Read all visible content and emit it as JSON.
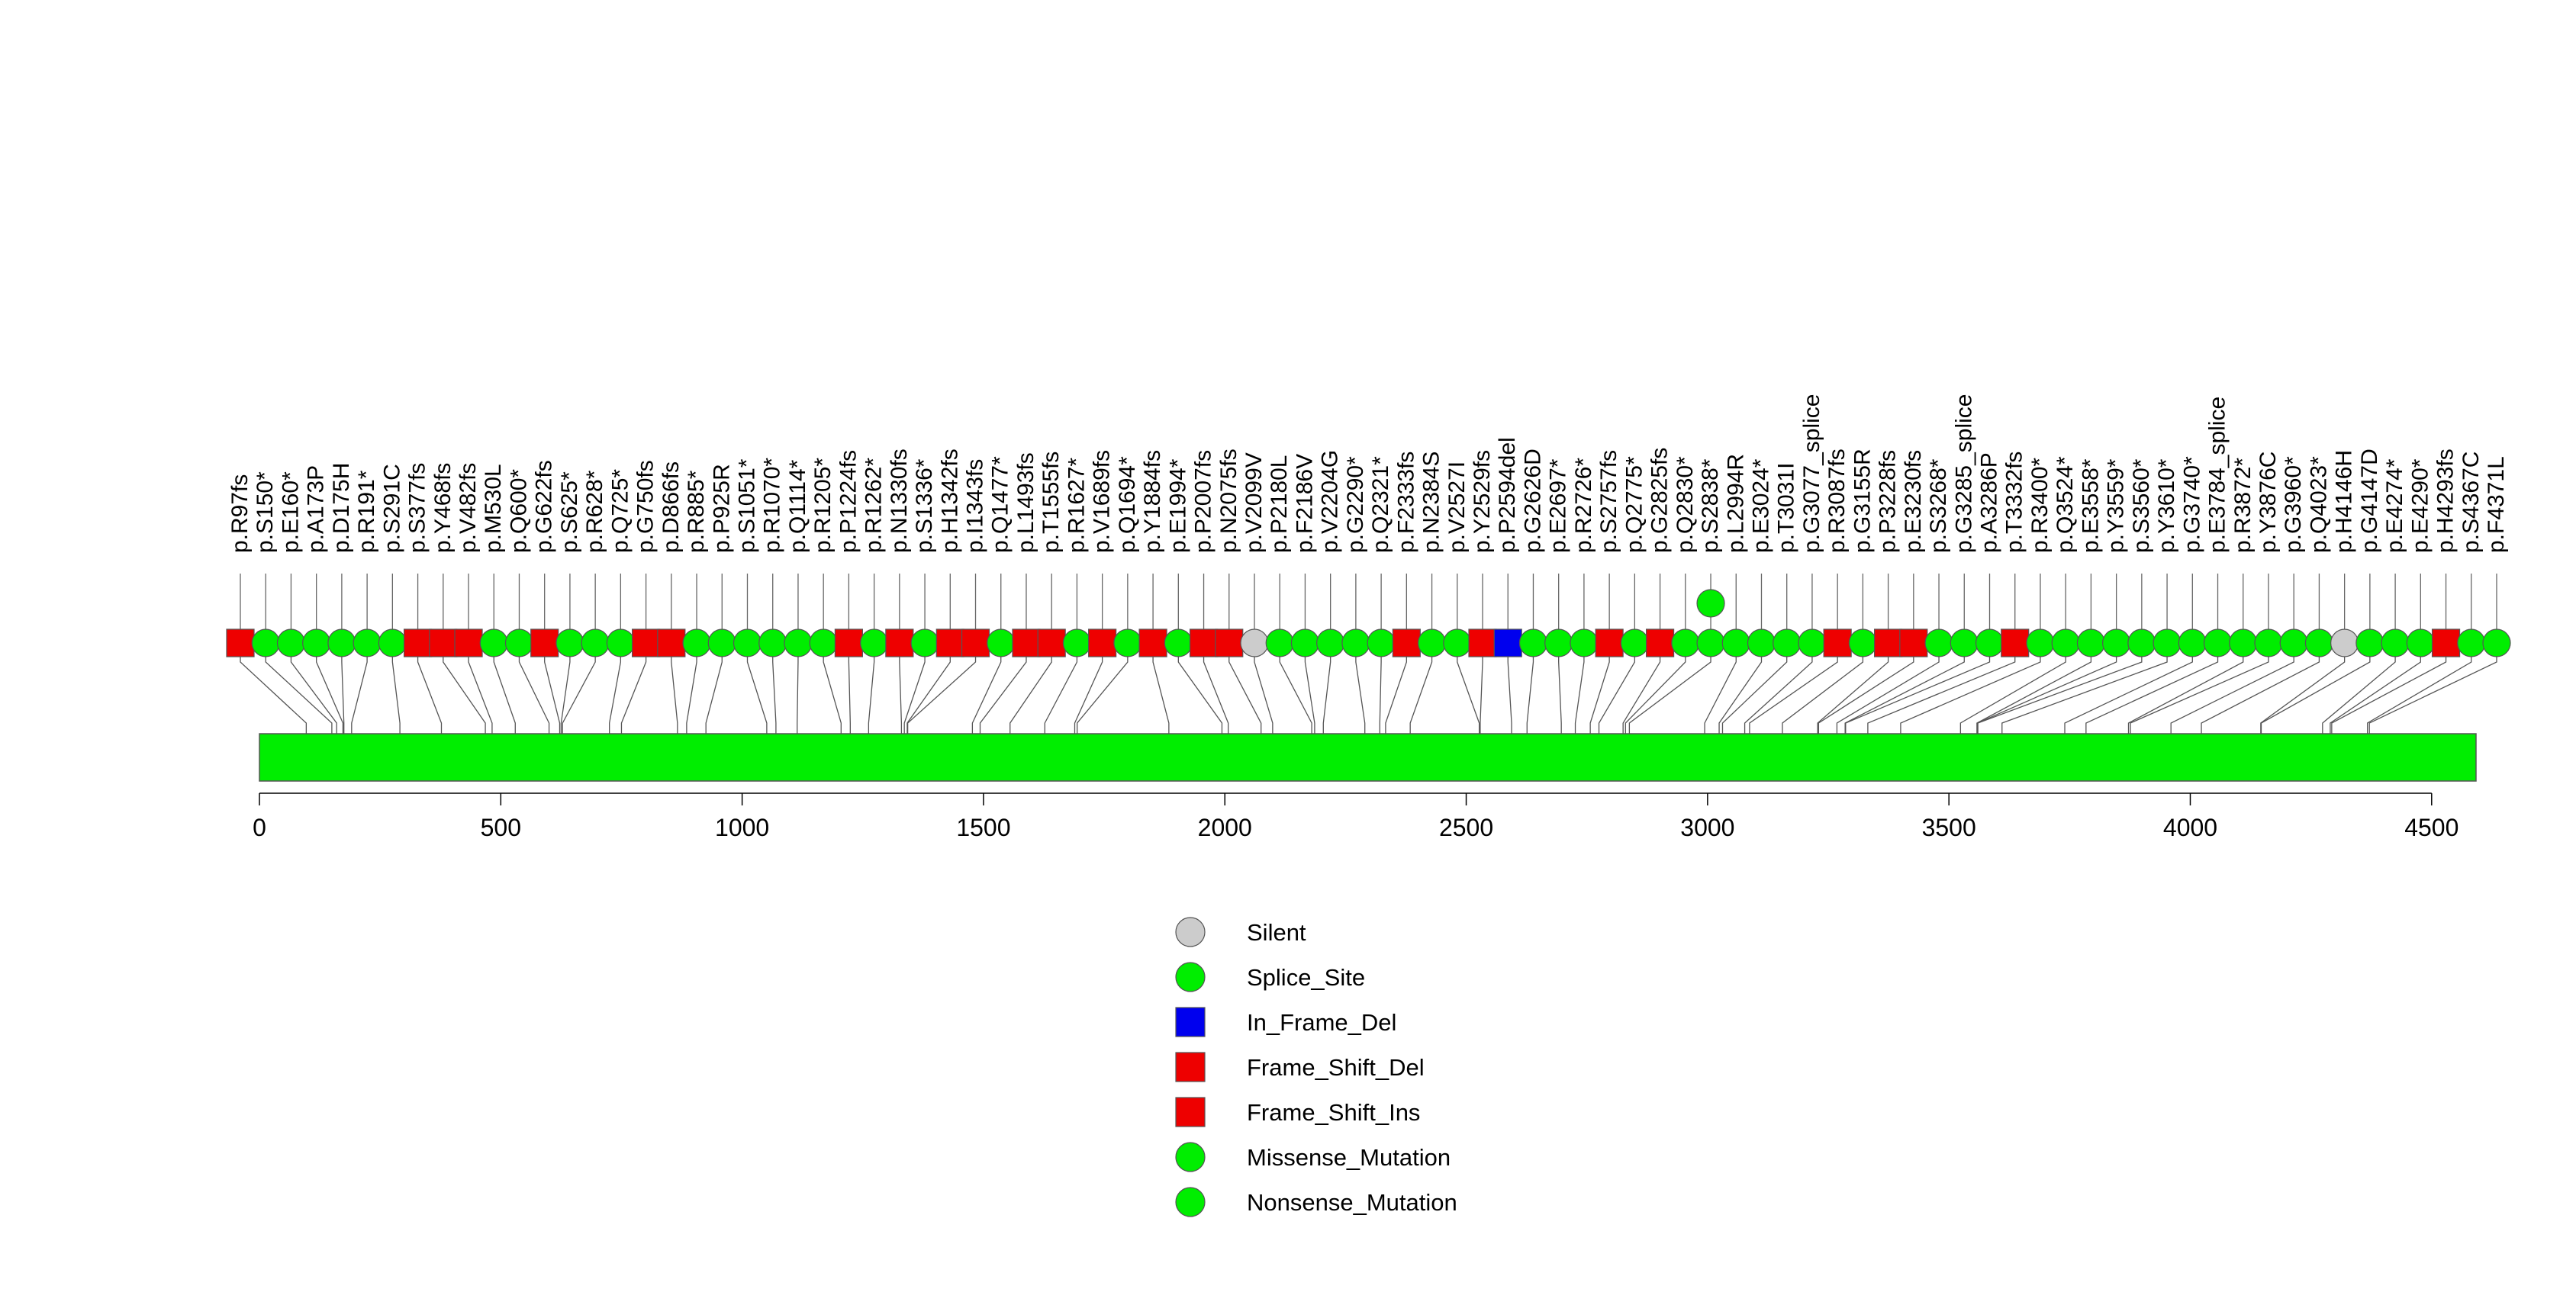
{
  "chart_data": {
    "type": "lollipop",
    "title": "",
    "protein_length": 4592,
    "xlim": [
      0,
      4592
    ],
    "x_ticks": [
      0,
      500,
      1000,
      1500,
      2000,
      2500,
      3000,
      3500,
      4000,
      4500
    ],
    "x_tick_labels": [
      "0",
      "500",
      "1000",
      "1500",
      "2000",
      "2500",
      "3000",
      "3500",
      "4000",
      "4500"
    ],
    "domains": [
      {
        "name": "",
        "start": 0,
        "end": 4592,
        "color": "#00ee00"
      }
    ],
    "mutation_colors": {
      "Silent": "#cccccc",
      "Splice_Site": "#00ee00",
      "In_Frame_Del": "#0000ee",
      "Frame_Shift_Del": "#ee0000",
      "Frame_Shift_Ins": "#ee0000",
      "Missense_Mutation": "#00ee00",
      "Nonsense_Mutation": "#00ee00"
    },
    "legend": [
      {
        "label": "Silent",
        "shape": "circle",
        "color": "#cccccc"
      },
      {
        "label": "Splice_Site",
        "shape": "circle",
        "color": "#00ee00"
      },
      {
        "label": "In_Frame_Del",
        "shape": "square",
        "color": "#0000ee"
      },
      {
        "label": "Frame_Shift_Del",
        "shape": "square",
        "color": "#ee0000"
      },
      {
        "label": "Frame_Shift_Ins",
        "shape": "square",
        "color": "#ee0000"
      },
      {
        "label": "Missense_Mutation",
        "shape": "circle",
        "color": "#00ee00"
      },
      {
        "label": "Nonsense_Mutation",
        "shape": "circle",
        "color": "#00ee00"
      }
    ],
    "mutations": [
      {
        "label": "p.R97fs",
        "pos": 97,
        "type": "Frame_Shift_Del",
        "count": 1
      },
      {
        "label": "p.S150*",
        "pos": 150,
        "type": "Nonsense_Mutation",
        "count": 1
      },
      {
        "label": "p.E160*",
        "pos": 160,
        "type": "Nonsense_Mutation",
        "count": 1
      },
      {
        "label": "p.A173P",
        "pos": 173,
        "type": "Missense_Mutation",
        "count": 1
      },
      {
        "label": "p.D175H",
        "pos": 175,
        "type": "Missense_Mutation",
        "count": 1
      },
      {
        "label": "p.R191*",
        "pos": 191,
        "type": "Nonsense_Mutation",
        "count": 1
      },
      {
        "label": "p.S291C",
        "pos": 291,
        "type": "Missense_Mutation",
        "count": 1
      },
      {
        "label": "p.S377fs",
        "pos": 377,
        "type": "Frame_Shift_Del",
        "count": 1
      },
      {
        "label": "p.Y468fs",
        "pos": 468,
        "type": "Frame_Shift_Del",
        "count": 1
      },
      {
        "label": "p.V482fs",
        "pos": 482,
        "type": "Frame_Shift_Ins",
        "count": 1
      },
      {
        "label": "p.M530L",
        "pos": 530,
        "type": "Missense_Mutation",
        "count": 1
      },
      {
        "label": "p.Q600*",
        "pos": 600,
        "type": "Nonsense_Mutation",
        "count": 1
      },
      {
        "label": "p.G622fs",
        "pos": 622,
        "type": "Frame_Shift_Del",
        "count": 1
      },
      {
        "label": "p.S625*",
        "pos": 625,
        "type": "Nonsense_Mutation",
        "count": 1
      },
      {
        "label": "p.R628*",
        "pos": 628,
        "type": "Nonsense_Mutation",
        "count": 1
      },
      {
        "label": "p.Q725*",
        "pos": 725,
        "type": "Nonsense_Mutation",
        "count": 1
      },
      {
        "label": "p.G750fs",
        "pos": 750,
        "type": "Frame_Shift_Del",
        "count": 1
      },
      {
        "label": "p.D866fs",
        "pos": 866,
        "type": "Frame_Shift_Del",
        "count": 1
      },
      {
        "label": "p.R885*",
        "pos": 885,
        "type": "Nonsense_Mutation",
        "count": 1
      },
      {
        "label": "p.P925R",
        "pos": 925,
        "type": "Missense_Mutation",
        "count": 1
      },
      {
        "label": "p.S1051*",
        "pos": 1051,
        "type": "Nonsense_Mutation",
        "count": 1
      },
      {
        "label": "p.R1070*",
        "pos": 1070,
        "type": "Nonsense_Mutation",
        "count": 1
      },
      {
        "label": "p.Q1114*",
        "pos": 1114,
        "type": "Nonsense_Mutation",
        "count": 1
      },
      {
        "label": "p.R1205*",
        "pos": 1205,
        "type": "Nonsense_Mutation",
        "count": 1
      },
      {
        "label": "p.P1224fs",
        "pos": 1224,
        "type": "Frame_Shift_Del",
        "count": 1
      },
      {
        "label": "p.R1262*",
        "pos": 1262,
        "type": "Nonsense_Mutation",
        "count": 1
      },
      {
        "label": "p.N1330fs",
        "pos": 1330,
        "type": "Frame_Shift_Del",
        "count": 1
      },
      {
        "label": "p.S1336*",
        "pos": 1336,
        "type": "Nonsense_Mutation",
        "count": 1
      },
      {
        "label": "p.H1342fs",
        "pos": 1342,
        "type": "Frame_Shift_Del",
        "count": 1
      },
      {
        "label": "p.I1343fs",
        "pos": 1343,
        "type": "Frame_Shift_Del",
        "count": 1
      },
      {
        "label": "p.Q1477*",
        "pos": 1477,
        "type": "Nonsense_Mutation",
        "count": 1
      },
      {
        "label": "p.L1493fs",
        "pos": 1493,
        "type": "Frame_Shift_Del",
        "count": 1
      },
      {
        "label": "p.T1555fs",
        "pos": 1555,
        "type": "Frame_Shift_Del",
        "count": 1
      },
      {
        "label": "p.R1627*",
        "pos": 1627,
        "type": "Nonsense_Mutation",
        "count": 1
      },
      {
        "label": "p.V1689fs",
        "pos": 1689,
        "type": "Frame_Shift_Del",
        "count": 1
      },
      {
        "label": "p.Q1694*",
        "pos": 1694,
        "type": "Nonsense_Mutation",
        "count": 1
      },
      {
        "label": "p.Y1884fs",
        "pos": 1884,
        "type": "Frame_Shift_Del",
        "count": 1
      },
      {
        "label": "p.E1994*",
        "pos": 1994,
        "type": "Nonsense_Mutation",
        "count": 1
      },
      {
        "label": "p.P2007fs",
        "pos": 2007,
        "type": "Frame_Shift_Del",
        "count": 1
      },
      {
        "label": "p.N2075fs",
        "pos": 2075,
        "type": "Frame_Shift_Del",
        "count": 1
      },
      {
        "label": "p.V2099V",
        "pos": 2099,
        "type": "Silent",
        "count": 1
      },
      {
        "label": "p.P2180L",
        "pos": 2180,
        "type": "Missense_Mutation",
        "count": 1
      },
      {
        "label": "p.F2186V",
        "pos": 2186,
        "type": "Missense_Mutation",
        "count": 1
      },
      {
        "label": "p.V2204G",
        "pos": 2204,
        "type": "Missense_Mutation",
        "count": 1
      },
      {
        "label": "p.G2290*",
        "pos": 2290,
        "type": "Nonsense_Mutation",
        "count": 1
      },
      {
        "label": "p.Q2321*",
        "pos": 2321,
        "type": "Nonsense_Mutation",
        "count": 1
      },
      {
        "label": "p.F2333fs",
        "pos": 2333,
        "type": "Frame_Shift_Del",
        "count": 1
      },
      {
        "label": "p.N2384S",
        "pos": 2384,
        "type": "Missense_Mutation",
        "count": 1
      },
      {
        "label": "p.V2527I",
        "pos": 2527,
        "type": "Missense_Mutation",
        "count": 1
      },
      {
        "label": "p.Y2529fs",
        "pos": 2529,
        "type": "Frame_Shift_Del",
        "count": 1
      },
      {
        "label": "p.P2594del",
        "pos": 2594,
        "type": "In_Frame_Del",
        "count": 1
      },
      {
        "label": "p.G2626D",
        "pos": 2626,
        "type": "Missense_Mutation",
        "count": 1
      },
      {
        "label": "p.E2697*",
        "pos": 2697,
        "type": "Nonsense_Mutation",
        "count": 1
      },
      {
        "label": "p.R2726*",
        "pos": 2726,
        "type": "Nonsense_Mutation",
        "count": 1
      },
      {
        "label": "p.S2757fs",
        "pos": 2757,
        "type": "Frame_Shift_Del",
        "count": 1
      },
      {
        "label": "p.Q2775*",
        "pos": 2775,
        "type": "Nonsense_Mutation",
        "count": 1
      },
      {
        "label": "p.G2825fs",
        "pos": 2825,
        "type": "Frame_Shift_Del",
        "count": 1
      },
      {
        "label": "p.Q2830*",
        "pos": 2830,
        "type": "Nonsense_Mutation",
        "count": 1
      },
      {
        "label": "p.S2838*",
        "pos": 2838,
        "type": "Nonsense_Mutation",
        "count": 2
      },
      {
        "label": "p.L2994R",
        "pos": 2994,
        "type": "Missense_Mutation",
        "count": 1
      },
      {
        "label": "p.E3024*",
        "pos": 3024,
        "type": "Nonsense_Mutation",
        "count": 1
      },
      {
        "label": "p.T3031I",
        "pos": 3031,
        "type": "Missense_Mutation",
        "count": 1
      },
      {
        "label": "p.G3077_splice",
        "pos": 3077,
        "type": "Splice_Site",
        "count": 1
      },
      {
        "label": "p.R3087fs",
        "pos": 3087,
        "type": "Frame_Shift_Del",
        "count": 1
      },
      {
        "label": "p.G3155R",
        "pos": 3155,
        "type": "Missense_Mutation",
        "count": 1
      },
      {
        "label": "p.P3228fs",
        "pos": 3228,
        "type": "Frame_Shift_Del",
        "count": 1
      },
      {
        "label": "p.E3230fs",
        "pos": 3230,
        "type": "Frame_Shift_Del",
        "count": 1
      },
      {
        "label": "p.S3268*",
        "pos": 3268,
        "type": "Nonsense_Mutation",
        "count": 1
      },
      {
        "label": "p.G3285_splice",
        "pos": 3285,
        "type": "Splice_Site",
        "count": 1
      },
      {
        "label": "p.A3286P",
        "pos": 3286,
        "type": "Missense_Mutation",
        "count": 1
      },
      {
        "label": "p.T3332fs",
        "pos": 3332,
        "type": "Frame_Shift_Del",
        "count": 1
      },
      {
        "label": "p.R3400*",
        "pos": 3400,
        "type": "Nonsense_Mutation",
        "count": 1
      },
      {
        "label": "p.Q3524*",
        "pos": 3524,
        "type": "Nonsense_Mutation",
        "count": 1
      },
      {
        "label": "p.E3558*",
        "pos": 3558,
        "type": "Nonsense_Mutation",
        "count": 1
      },
      {
        "label": "p.Y3559*",
        "pos": 3559,
        "type": "Nonsense_Mutation",
        "count": 1
      },
      {
        "label": "p.S3560*",
        "pos": 3560,
        "type": "Nonsense_Mutation",
        "count": 1
      },
      {
        "label": "p.Y3610*",
        "pos": 3610,
        "type": "Nonsense_Mutation",
        "count": 1
      },
      {
        "label": "p.G3740*",
        "pos": 3740,
        "type": "Nonsense_Mutation",
        "count": 1
      },
      {
        "label": "p.E3784_splice",
        "pos": 3784,
        "type": "Splice_Site",
        "count": 1
      },
      {
        "label": "p.R3872*",
        "pos": 3872,
        "type": "Nonsense_Mutation",
        "count": 1
      },
      {
        "label": "p.Y3876C",
        "pos": 3876,
        "type": "Missense_Mutation",
        "count": 1
      },
      {
        "label": "p.G3960*",
        "pos": 3960,
        "type": "Nonsense_Mutation",
        "count": 1
      },
      {
        "label": "p.Q4023*",
        "pos": 4023,
        "type": "Nonsense_Mutation",
        "count": 1
      },
      {
        "label": "p.H4146H",
        "pos": 4146,
        "type": "Silent",
        "count": 1
      },
      {
        "label": "p.G4147D",
        "pos": 4147,
        "type": "Missense_Mutation",
        "count": 1
      },
      {
        "label": "p.E4274*",
        "pos": 4274,
        "type": "Nonsense_Mutation",
        "count": 1
      },
      {
        "label": "p.E4290*",
        "pos": 4290,
        "type": "Nonsense_Mutation",
        "count": 1
      },
      {
        "label": "p.H4293fs",
        "pos": 4293,
        "type": "Frame_Shift_Del",
        "count": 1
      },
      {
        "label": "p.S4367C",
        "pos": 4367,
        "type": "Missense_Mutation",
        "count": 1
      },
      {
        "label": "p.F4371L",
        "pos": 4371,
        "type": "Missense_Mutation",
        "count": 1
      }
    ]
  }
}
